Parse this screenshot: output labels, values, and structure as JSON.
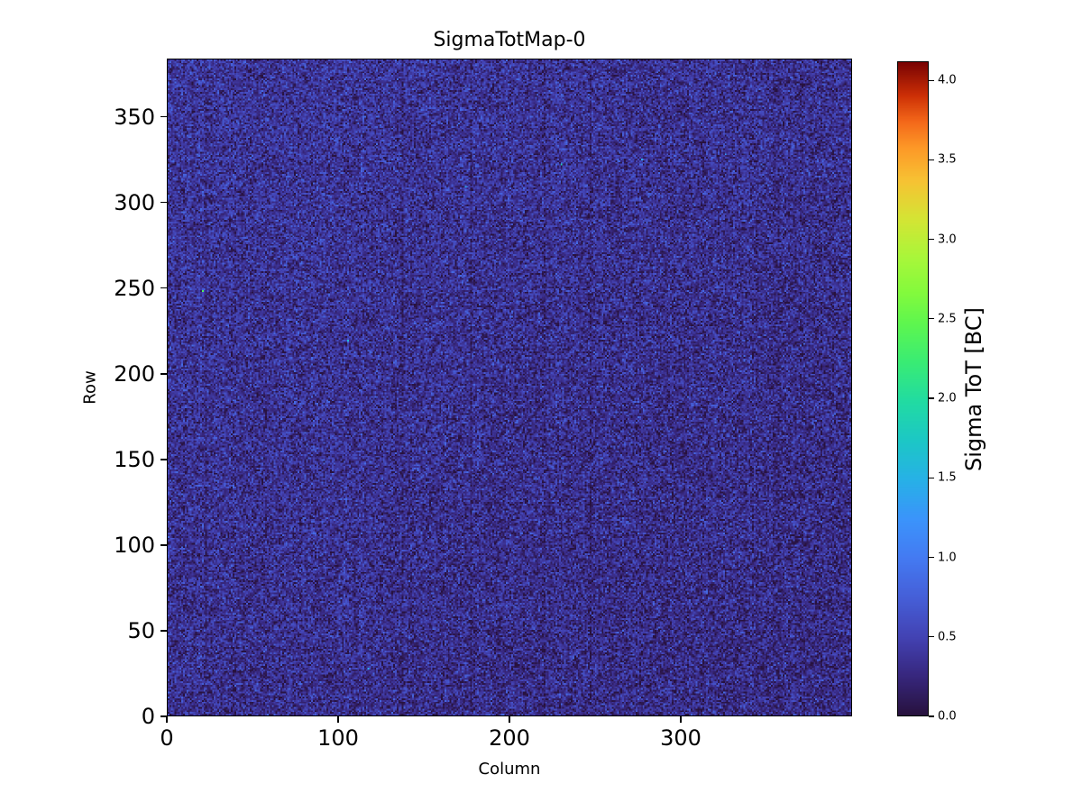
{
  "chart_data": {
    "type": "heatmap",
    "title": "SigmaTotMap-0",
    "xlabel": "Column",
    "ylabel": "Row",
    "colorbar_label": "Sigma ToT [BC]",
    "x_range": [
      0,
      400
    ],
    "y_range": [
      0,
      384
    ],
    "x_ticks": [
      "0",
      "100",
      "200",
      "300"
    ],
    "y_ticks": [
      "0",
      "50",
      "100",
      "150",
      "200",
      "250",
      "300",
      "350"
    ],
    "colorbar_ticks": [
      "0.0",
      "0.5",
      "1.0",
      "1.5",
      "2.0",
      "2.5",
      "3.0",
      "3.5",
      "4.0"
    ],
    "vmin": 0,
    "vmax": 4.12,
    "colormap": "turbo",
    "colormap_stops": [
      [
        0.0,
        "#28123e"
      ],
      [
        0.06,
        "#37277e"
      ],
      [
        0.12,
        "#4343b4"
      ],
      [
        0.18,
        "#455fd8"
      ],
      [
        0.24,
        "#447af2"
      ],
      [
        0.3,
        "#3b94fb"
      ],
      [
        0.36,
        "#27b1e7"
      ],
      [
        0.42,
        "#1cc7c6"
      ],
      [
        0.48,
        "#21dba3"
      ],
      [
        0.54,
        "#39ec75"
      ],
      [
        0.6,
        "#5ef64f"
      ],
      [
        0.65,
        "#85fa3c"
      ],
      [
        0.7,
        "#a8f73a"
      ],
      [
        0.76,
        "#d4e534"
      ],
      [
        0.82,
        "#f7c233"
      ],
      [
        0.87,
        "#fd9827"
      ],
      [
        0.91,
        "#f4681a"
      ],
      [
        0.95,
        "#cc2f06"
      ],
      [
        1.0,
        "#7a0403"
      ]
    ],
    "grid": {
      "cols": 400,
      "rows": 384
    },
    "values_summary": "Per-pixel random noise map: sigma ToT mostly 0 to 0.8 BC (dark navy to blue speckle), slightly brighter toward upper-left, darker toward lower-right, a few darker columns, and a handful of isolated outlier pixels around 1-2.5 BC.",
    "noise": {
      "seed": 20,
      "mean": 0.32,
      "std": 0.2,
      "clip_max": 0.85,
      "outlier_prob": 4e-05,
      "outlier_base": 1.2,
      "outlier_span": 1.3,
      "row_gradient": 0.06,
      "col_gradient": -0.05,
      "dark_col_prob": 0.02,
      "dark_col_depth": 0.1,
      "col_jitter": 0.06
    },
    "layout": {
      "grid_lines": false,
      "frame_color": "#000000",
      "background": "#ffffff"
    }
  }
}
